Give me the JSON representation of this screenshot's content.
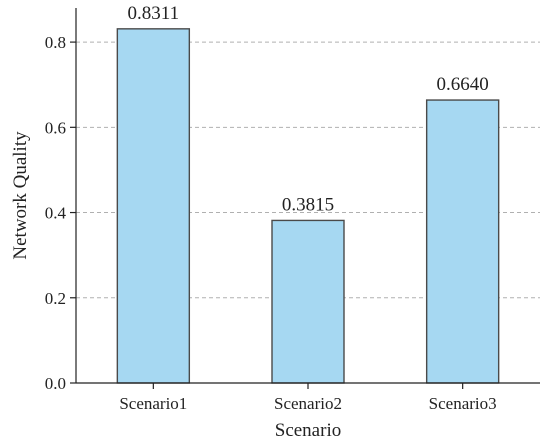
{
  "chart_data": {
    "type": "bar",
    "title": "",
    "xlabel": "Scenario",
    "ylabel": "Network Quality",
    "categories": [
      "Scenario1",
      "Scenario2",
      "Scenario3"
    ],
    "values": [
      0.8311,
      0.3815,
      0.664
    ],
    "data_labels": [
      "0.8311",
      "0.3815",
      "0.6640"
    ],
    "ylim": [
      0,
      0.88
    ],
    "yticks": [
      0.0,
      0.2,
      0.4,
      0.6,
      0.8
    ],
    "ytick_labels": [
      "0.0",
      "0.2",
      "0.4",
      "0.6",
      "0.8"
    ],
    "grid": "horizontal-dashed",
    "colors": {
      "bar_fill": "#a6d8f2",
      "bar_edge": "#4a4a4a",
      "grid": "#b0b0b0",
      "axis": "#222222"
    }
  }
}
